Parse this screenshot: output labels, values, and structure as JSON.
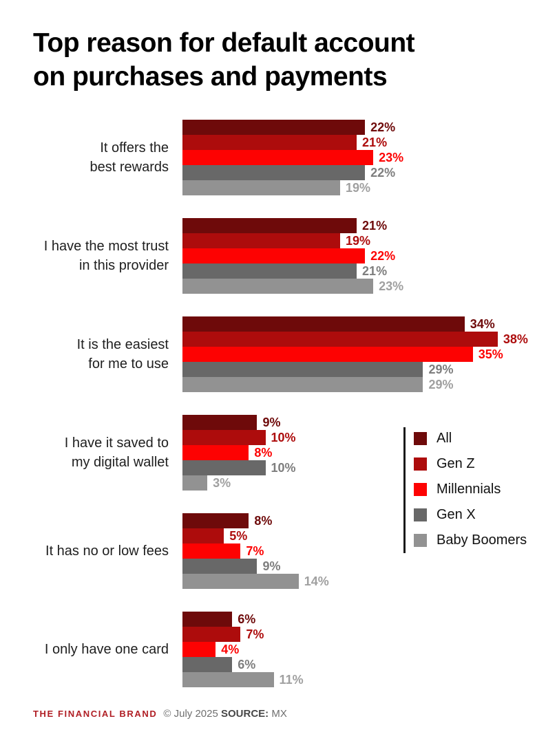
{
  "title": {
    "line1": "Top reason for default account",
    "line2": "on purchases and payments"
  },
  "chart_data": {
    "type": "bar",
    "orientation": "horizontal",
    "unit": "%",
    "xlim": [
      0,
      40
    ],
    "grid": false,
    "legend_position": "middle-right",
    "series": [
      {
        "name": "All",
        "color": "#6e0a0a",
        "label_color": "#6e0a0a"
      },
      {
        "name": "Gen Z",
        "color": "#ad0c0c",
        "label_color": "#ad0c0c"
      },
      {
        "name": "Millennials",
        "color": "#fd0202",
        "label_color": "#fd0202"
      },
      {
        "name": "Gen X",
        "color": "#686868",
        "label_color": "#7e7e7e"
      },
      {
        "name": "Baby Boomers",
        "color": "#929292",
        "label_color": "#a0a0a0"
      }
    ],
    "categories": [
      {
        "label_lines": [
          "It offers the",
          "best rewards"
        ],
        "values": [
          22,
          21,
          23,
          22,
          19
        ]
      },
      {
        "label_lines": [
          "I have the most trust",
          "in this provider"
        ],
        "values": [
          21,
          19,
          22,
          21,
          23
        ]
      },
      {
        "label_lines": [
          "It is the easiest",
          "for me to use"
        ],
        "values": [
          34,
          38,
          35,
          29,
          29
        ]
      },
      {
        "label_lines": [
          "I have it saved to",
          "my digital wallet"
        ],
        "values": [
          9,
          10,
          8,
          10,
          3
        ]
      },
      {
        "label_lines": [
          "It has no or low fees"
        ],
        "values": [
          8,
          5,
          7,
          9,
          14
        ]
      },
      {
        "label_lines": [
          "I only have one card"
        ],
        "values": [
          6,
          7,
          4,
          6,
          11
        ]
      }
    ]
  },
  "footer": {
    "brand": "THE FINANCIAL BRAND",
    "copyright": "© July 2025",
    "source_label": "SOURCE:",
    "source_value": "MX"
  }
}
